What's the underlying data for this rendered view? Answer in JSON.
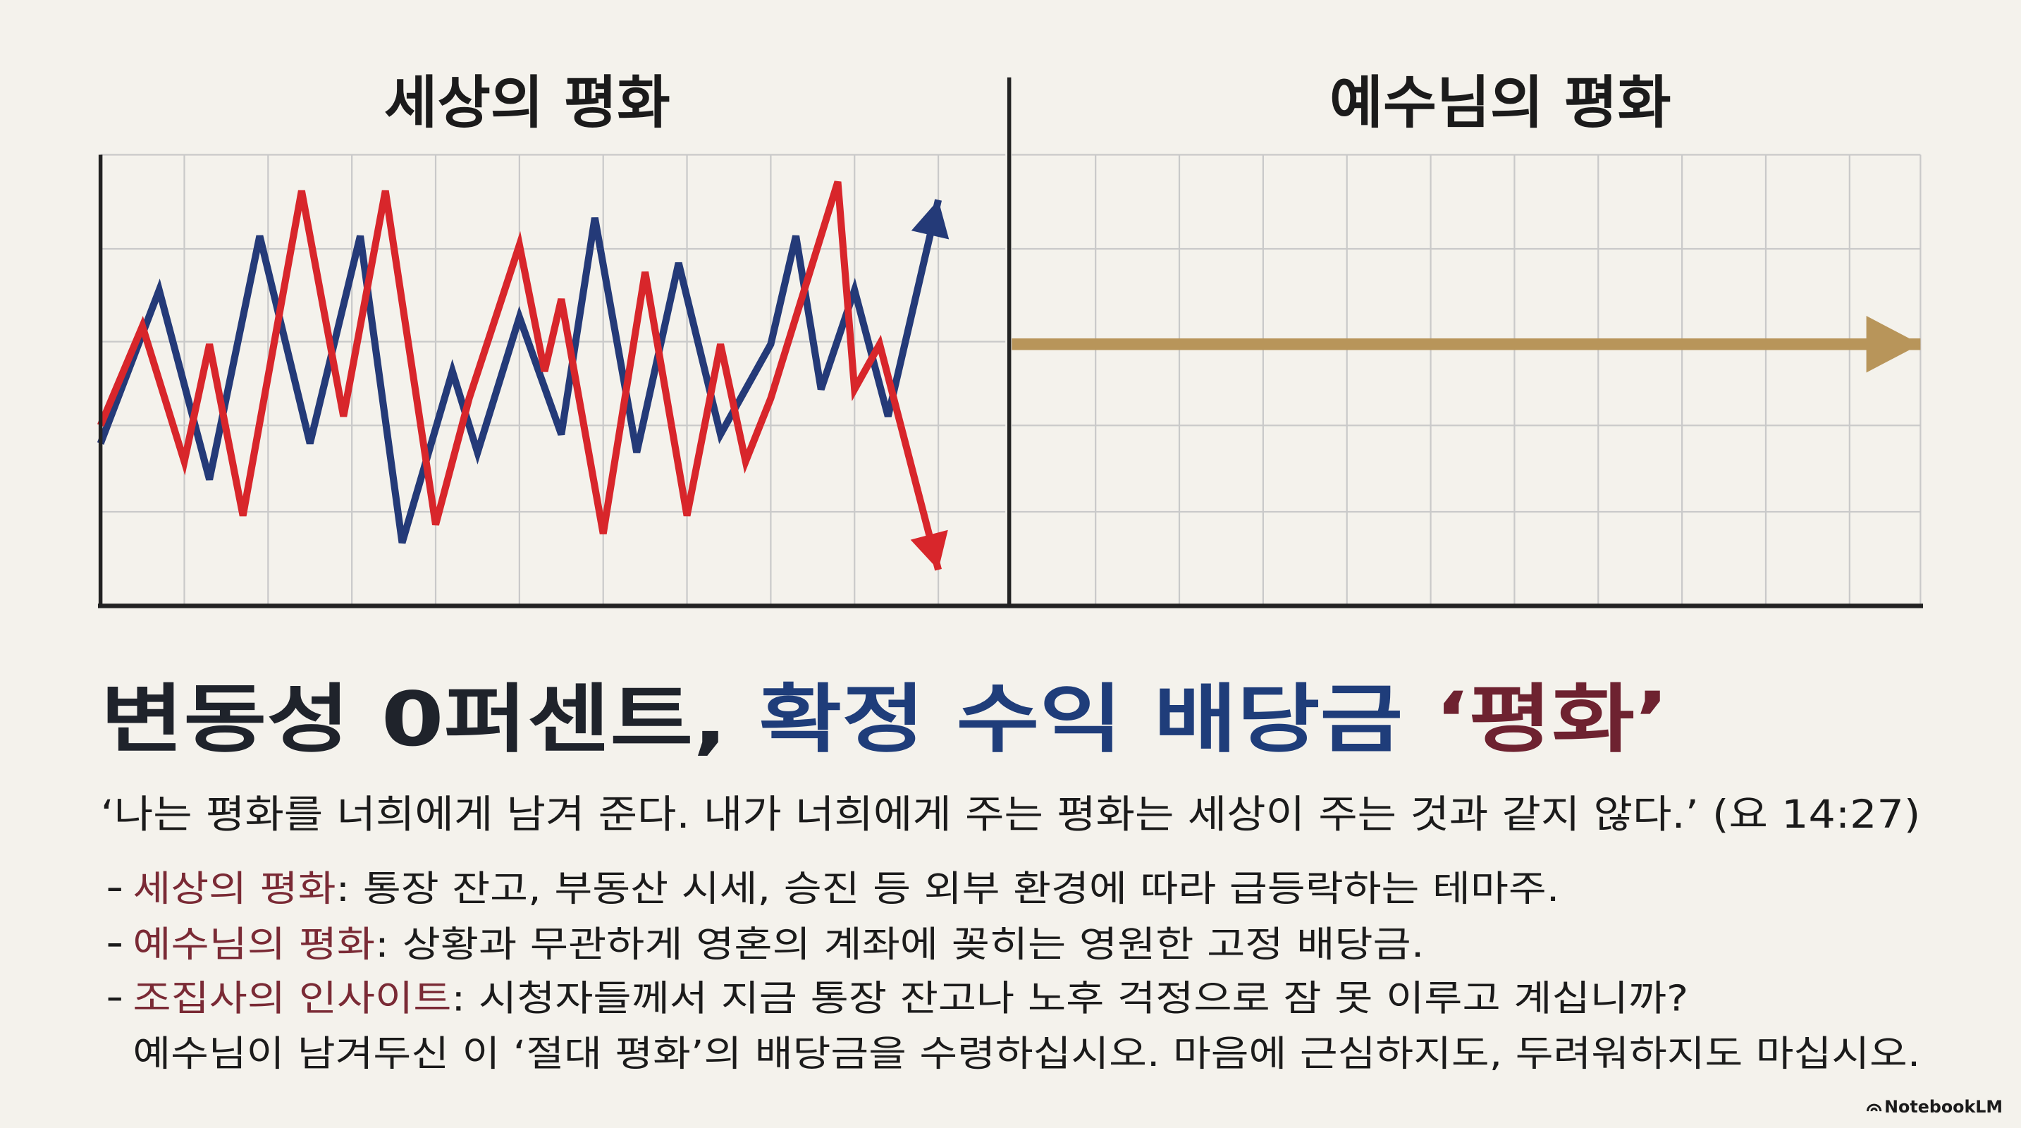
{
  "chart_data": [
    {
      "type": "line",
      "title": "세상의 평화",
      "xlim": [
        0,
        10.8
      ],
      "ylim": [
        0,
        5
      ],
      "grid": true,
      "series": [
        {
          "color": "#243a78",
          "x": [
            0,
            0.7,
            1.3,
            1.9,
            2.5,
            3.1,
            3.6,
            4.2,
            4.5,
            5.0,
            5.5,
            5.9,
            6.4,
            6.9,
            7.4,
            8.0,
            8.3,
            8.6,
            9.0,
            9.4,
            10.0
          ],
          "values": [
            1.8,
            3.5,
            1.4,
            4.1,
            1.8,
            4.1,
            0.7,
            2.6,
            1.7,
            3.2,
            1.9,
            4.3,
            1.7,
            3.8,
            1.9,
            2.9,
            4.1,
            2.4,
            3.5,
            2.1,
            4.5
          ]
        },
        {
          "color": "#d8262b",
          "x": [
            0,
            0.5,
            1.0,
            1.3,
            1.7,
            2.4,
            2.9,
            3.4,
            4.0,
            4.4,
            5.0,
            5.3,
            5.5,
            6.0,
            6.5,
            7.0,
            7.4,
            7.7,
            8.0,
            8.8,
            9.0,
            9.3,
            10.0
          ],
          "values": [
            2.0,
            3.1,
            1.6,
            2.9,
            1.0,
            4.6,
            2.1,
            4.6,
            0.9,
            2.3,
            4.0,
            2.6,
            3.4,
            0.8,
            3.7,
            1.0,
            2.9,
            1.6,
            2.3,
            4.7,
            2.4,
            2.9,
            0.4
          ]
        }
      ]
    },
    {
      "type": "line",
      "title": "예수님의 평화",
      "xlim": [
        0,
        10.8
      ],
      "ylim": [
        0,
        5
      ],
      "grid": true,
      "series": [
        {
          "color": "#b8955a",
          "x": [
            0,
            10.8
          ],
          "values": [
            2.9,
            2.9
          ]
        }
      ]
    }
  ],
  "headline": {
    "part1": "변동성 0퍼센트, ",
    "part2": "확정 수익 배당금 ",
    "part3": "‘평화’"
  },
  "quote": "‘나는 평화를 너희에게 남겨 준다. 내가 너희에게 주는 평화는 세상이 주는 것과 같지 않다.’ (요 14:27)",
  "bullets": [
    {
      "label": "세상의 평화",
      "text": ": 통장 잔고, 부동산 시세, 승진 등 외부 환경에 따라 급등락하는 테마주."
    },
    {
      "label": "예수님의 평화",
      "text": ": 상황과 무관하게 영혼의 계좌에 꽂히는 영원한 고정 배당금."
    },
    {
      "label": "조집사의 인사이트",
      "text": ": 시청자들께서 지금 통장 잔고나 노후 걱정으로 잠 못 이루고 계십니까?"
    }
  ],
  "continuation": "예수님이 남겨두신 이 ‘절대 평화’의 배당금을 수령하십시오. 마음에 근심하지도, 두려워하지도 마십시오.",
  "footer": "NotebookLM"
}
